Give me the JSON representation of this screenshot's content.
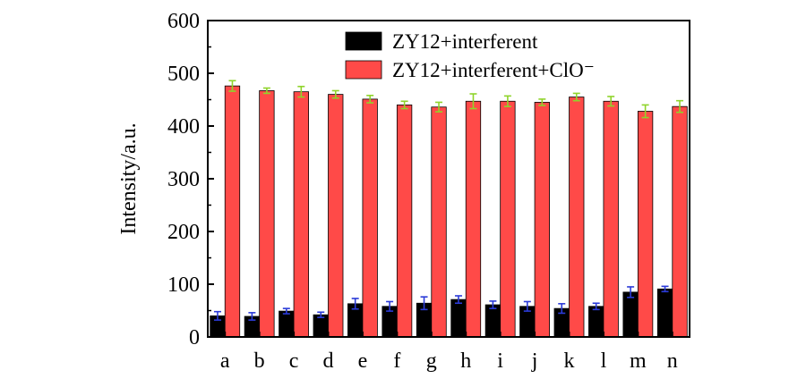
{
  "chart_data": {
    "type": "bar",
    "xlabel": "",
    "ylabel": "Intensity/a.u.",
    "ylim": [
      0,
      600
    ],
    "yticks": [
      0,
      100,
      200,
      300,
      400,
      500,
      600
    ],
    "categories": [
      "a",
      "b",
      "c",
      "d",
      "e",
      "f",
      "g",
      "h",
      "i",
      "j",
      "k",
      "l",
      "m",
      "n"
    ],
    "series": [
      {
        "name": "ZY12+interferent",
        "color": "#000000",
        "error_color": "#2b3bd8",
        "values": [
          40,
          39,
          49,
          42,
          63,
          58,
          64,
          71,
          61,
          58,
          54,
          58,
          85,
          91
        ],
        "errors": [
          8,
          7,
          5,
          5,
          10,
          9,
          12,
          7,
          7,
          9,
          9,
          6,
          10,
          5
        ]
      },
      {
        "name": "ZY12+interferent+ClO⁻",
        "color": "#ff4a48",
        "error_color": "#8fd42b",
        "values": [
          476,
          467,
          465,
          460,
          451,
          440,
          436,
          447,
          447,
          445,
          455,
          447,
          428,
          437
        ],
        "errors": [
          10,
          5,
          10,
          7,
          7,
          7,
          9,
          14,
          10,
          6,
          7,
          9,
          12,
          11
        ]
      }
    ],
    "legend_position": "top-right",
    "grid": false
  }
}
